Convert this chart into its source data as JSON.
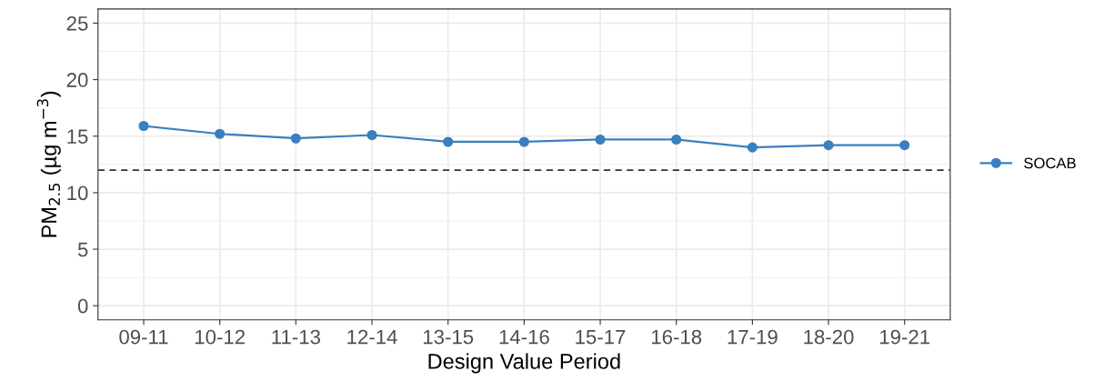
{
  "chart_data": {
    "type": "line",
    "xlabel": "Design Value Period",
    "ylabel": "PM$_{2.5}$ (µg m$^{−3}$)",
    "categories": [
      "09-11",
      "10-12",
      "11-13",
      "12-14",
      "13-15",
      "14-16",
      "15-17",
      "16-18",
      "17-19",
      "18-20",
      "19-21"
    ],
    "series": [
      {
        "name": "SOCAB",
        "color": "#3a7fbf",
        "values": [
          15.9,
          15.2,
          14.8,
          15.1,
          14.5,
          14.5,
          14.7,
          14.7,
          14.0,
          14.2,
          14.2
        ]
      }
    ],
    "ylim": [
      -1.25,
      26.25
    ],
    "yticks": [
      0,
      5,
      10,
      15,
      20,
      25
    ],
    "ref_lines": [
      {
        "axis": "y",
        "value": 12,
        "color": "#333333",
        "line_style": "dashed"
      }
    ],
    "grid": true,
    "legend": "right",
    "marker": "circle",
    "line_style": "solid"
  }
}
